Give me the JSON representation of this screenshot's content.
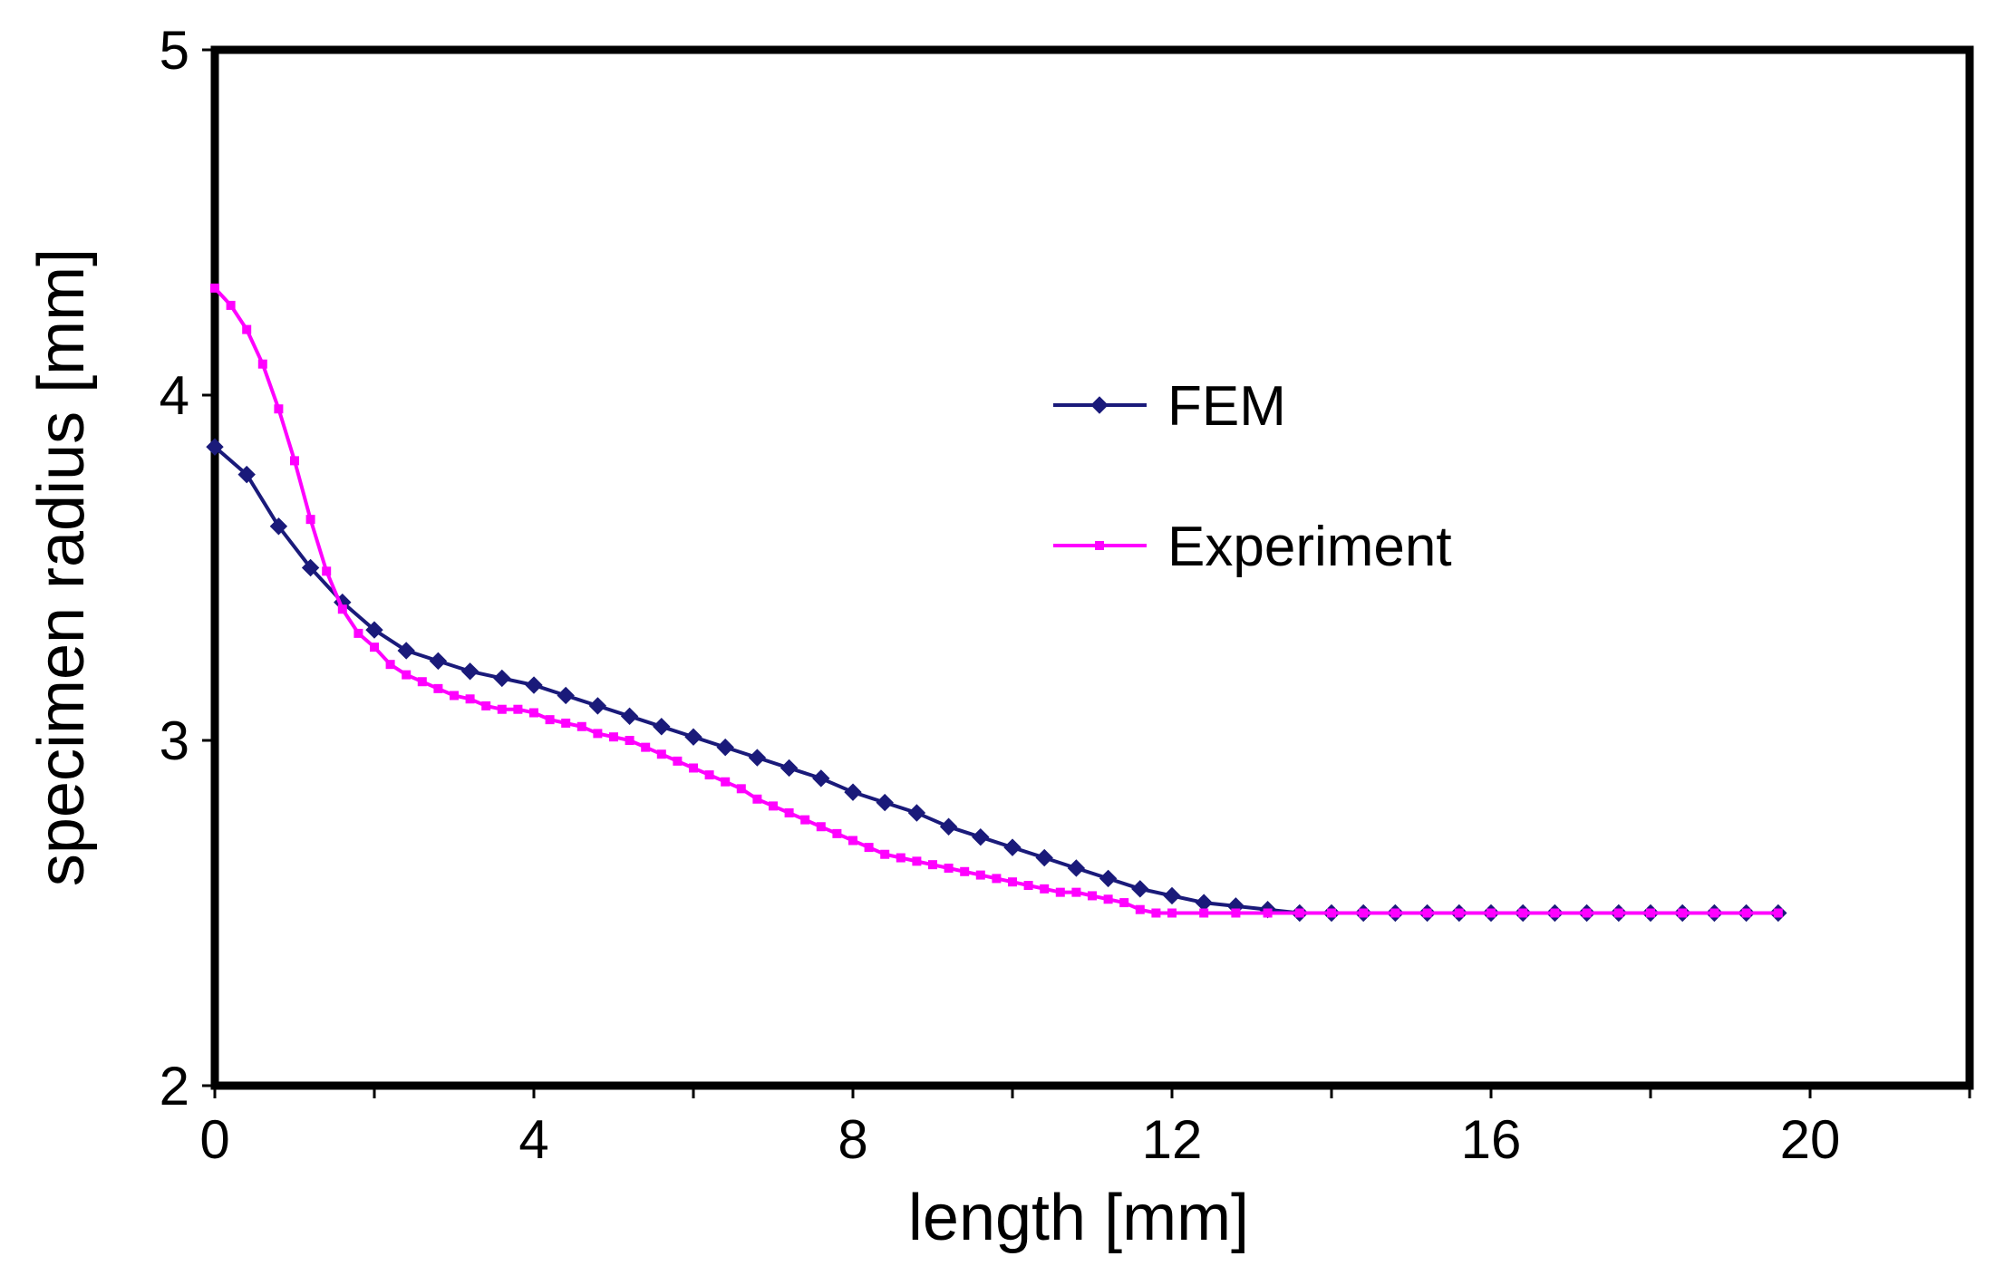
{
  "chart_data": {
    "type": "line",
    "title": "",
    "xlabel": "length [mm]",
    "ylabel": "specimen radius [mm]",
    "xlim": [
      0,
      22
    ],
    "ylim": [
      2,
      5
    ],
    "xticks": [
      0,
      4,
      8,
      12,
      16,
      20
    ],
    "yticks": [
      2,
      3,
      4,
      5
    ],
    "grid": false,
    "legend_position": "center-right",
    "series": [
      {
        "name": "FEM",
        "color": "#1a1a7a",
        "marker": "diamond",
        "x": [
          0,
          0.4,
          0.8,
          1.2,
          1.6,
          2.0,
          2.4,
          2.8,
          3.2,
          3.6,
          4.0,
          4.4,
          4.8,
          5.2,
          5.6,
          6.0,
          6.4,
          6.8,
          7.2,
          7.6,
          8.0,
          8.4,
          8.8,
          9.2,
          9.6,
          10.0,
          10.4,
          10.8,
          11.2,
          11.6,
          12.0,
          12.4,
          12.8,
          13.2,
          13.6,
          14.0,
          14.4,
          14.8,
          15.2,
          15.6,
          16.0,
          16.4,
          16.8,
          17.2,
          17.6,
          18.0,
          18.4,
          18.8,
          19.2,
          19.6
        ],
        "y": [
          3.85,
          3.77,
          3.62,
          3.5,
          3.4,
          3.32,
          3.26,
          3.23,
          3.2,
          3.18,
          3.16,
          3.13,
          3.1,
          3.07,
          3.04,
          3.01,
          2.98,
          2.95,
          2.92,
          2.89,
          2.85,
          2.82,
          2.79,
          2.75,
          2.72,
          2.69,
          2.66,
          2.63,
          2.6,
          2.57,
          2.55,
          2.53,
          2.52,
          2.51,
          2.5,
          2.5,
          2.5,
          2.5,
          2.5,
          2.5,
          2.5,
          2.5,
          2.5,
          2.5,
          2.5,
          2.5,
          2.5,
          2.5,
          2.5,
          2.5
        ]
      },
      {
        "name": "Experiment",
        "color": "#ff00ff",
        "marker": "square",
        "x": [
          0,
          0.2,
          0.4,
          0.6,
          0.8,
          1.0,
          1.2,
          1.4,
          1.6,
          1.8,
          2.0,
          2.2,
          2.4,
          2.6,
          2.8,
          3.0,
          3.2,
          3.4,
          3.6,
          3.8,
          4.0,
          4.2,
          4.4,
          4.6,
          4.8,
          5.0,
          5.2,
          5.4,
          5.6,
          5.8,
          6.0,
          6.2,
          6.4,
          6.6,
          6.8,
          7.0,
          7.2,
          7.4,
          7.6,
          7.8,
          8.0,
          8.2,
          8.4,
          8.6,
          8.8,
          9.0,
          9.2,
          9.4,
          9.6,
          9.8,
          10.0,
          10.2,
          10.4,
          10.6,
          10.8,
          11.0,
          11.2,
          11.4,
          11.6,
          11.8,
          12.0,
          12.4,
          12.8,
          13.2,
          13.6,
          14.0,
          14.4,
          14.8,
          15.2,
          15.6,
          16.0,
          16.4,
          16.8,
          17.2,
          17.6,
          18.0,
          18.4,
          18.8,
          19.2,
          19.6
        ],
        "y": [
          4.31,
          4.26,
          4.19,
          4.09,
          3.96,
          3.81,
          3.64,
          3.49,
          3.38,
          3.31,
          3.27,
          3.22,
          3.19,
          3.17,
          3.15,
          3.13,
          3.12,
          3.1,
          3.09,
          3.09,
          3.08,
          3.06,
          3.05,
          3.04,
          3.02,
          3.01,
          3.0,
          2.98,
          2.96,
          2.94,
          2.92,
          2.9,
          2.88,
          2.86,
          2.83,
          2.81,
          2.79,
          2.77,
          2.75,
          2.73,
          2.71,
          2.69,
          2.67,
          2.66,
          2.65,
          2.64,
          2.63,
          2.62,
          2.61,
          2.6,
          2.59,
          2.58,
          2.57,
          2.56,
          2.56,
          2.55,
          2.54,
          2.53,
          2.51,
          2.5,
          2.5,
          2.5,
          2.5,
          2.5,
          2.5,
          2.5,
          2.5,
          2.5,
          2.5,
          2.5,
          2.5,
          2.5,
          2.5,
          2.5,
          2.5,
          2.5,
          2.5,
          2.5,
          2.5,
          2.5
        ]
      }
    ]
  }
}
